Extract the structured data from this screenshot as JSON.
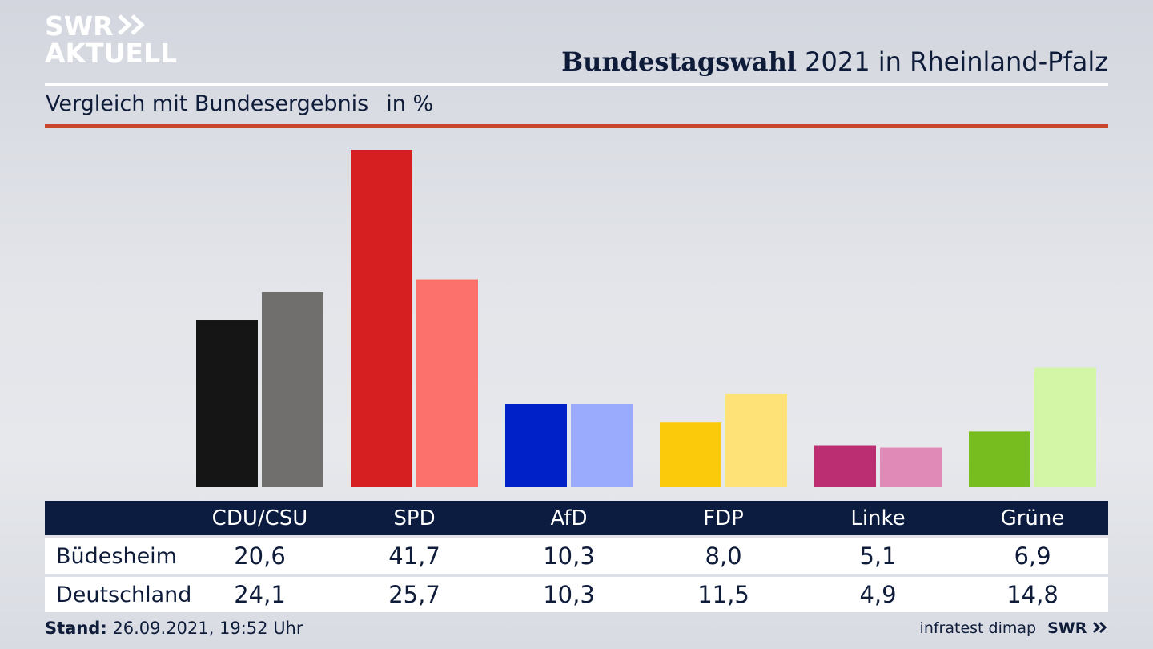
{
  "brand": {
    "line1": "SWR",
    "line2": "AKTUELL",
    "footer_logo": "SWR"
  },
  "header": {
    "title_bold": "Bundestagswahl",
    "title_rest": "2021 in Rheinland-Pfalz",
    "subtitle": "Vergleich mit Bundesergebnis",
    "unit": "in %"
  },
  "colors": {
    "dark": [
      "#151515",
      "#d51f20",
      "#0020c8",
      "#fbcb0b",
      "#bc2e72",
      "#78bd20"
    ],
    "light": [
      "#706f6d",
      "#fd716c",
      "#9aabfe",
      "#fee277",
      "#e08ab7",
      "#d2f5a6"
    ],
    "rule": "#c9432f",
    "table_header": "#0b1c40"
  },
  "chart_data": {
    "type": "bar",
    "categories": [
      "CDU/CSU",
      "SPD",
      "AfD",
      "FDP",
      "Linke",
      "Grüne"
    ],
    "series": [
      {
        "name": "Büdesheim",
        "values": [
          20.6,
          41.7,
          10.3,
          8.0,
          5.1,
          6.9
        ]
      },
      {
        "name": "Deutschland",
        "values": [
          24.1,
          25.7,
          10.3,
          11.5,
          4.9,
          14.8
        ]
      }
    ],
    "ylim": [
      0,
      41.7
    ]
  },
  "table": {
    "rows": [
      {
        "label": "Büdesheim",
        "values": [
          "20,6",
          "41,7",
          "10,3",
          "8,0",
          "5,1",
          "6,9"
        ]
      },
      {
        "label": "Deutschland",
        "values": [
          "24,1",
          "25,7",
          "10,3",
          "11,5",
          "4,9",
          "14,8"
        ]
      }
    ]
  },
  "footer": {
    "stand_label": "Stand:",
    "stand_value": "26.09.2021, 19:52 Uhr",
    "source": "infratest dimap"
  }
}
